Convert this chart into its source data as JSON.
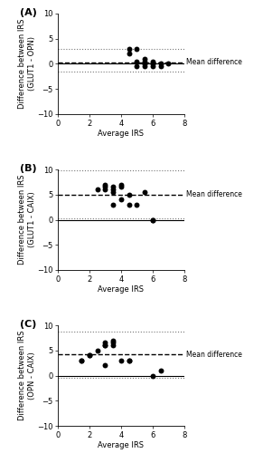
{
  "panel_A": {
    "label": "(A)",
    "ylabel": "Difference between IRS\n(GLUT1 - OPN)",
    "xlabel": "Average IRS",
    "mean_diff": 0.3,
    "upper_ci": 3.0,
    "lower_ci": -1.5,
    "zero_line": 0.0,
    "xlim": [
      0,
      8
    ],
    "ylim": [
      -10,
      10
    ],
    "xticks": [
      0,
      2,
      4,
      6,
      8
    ],
    "yticks": [
      -10,
      -5,
      0,
      5,
      10
    ],
    "points_x": [
      4.5,
      4.5,
      5.0,
      5.0,
      5.0,
      5.5,
      5.5,
      5.5,
      5.5,
      5.5,
      6.0,
      6.0,
      6.0,
      6.0,
      6.5,
      6.5,
      7.0
    ],
    "points_y": [
      2.0,
      3.0,
      3.0,
      0.5,
      -0.5,
      0.5,
      0.0,
      0.0,
      -0.5,
      1.0,
      0.5,
      0.0,
      -0.5,
      0.0,
      -0.5,
      0.0,
      0.0
    ],
    "mean_label": "Mean difference"
  },
  "panel_B": {
    "label": "(B)",
    "ylabel": "Difference between IRS\n(GLUT1 - CAIX)",
    "xlabel": "Average IRS",
    "mean_diff": 5.0,
    "upper_ci": 9.8,
    "lower_ci": 0.2,
    "zero_line": 0.0,
    "xlim": [
      0,
      8
    ],
    "ylim": [
      -10,
      10
    ],
    "xticks": [
      0,
      2,
      4,
      6,
      8
    ],
    "yticks": [
      -10,
      -5,
      0,
      5,
      10
    ],
    "points_x": [
      2.5,
      3.0,
      3.0,
      3.0,
      3.5,
      3.5,
      3.5,
      3.5,
      4.0,
      4.0,
      4.0,
      4.5,
      4.5,
      5.0,
      5.5,
      6.0,
      6.0
    ],
    "points_y": [
      6.0,
      6.0,
      7.0,
      6.5,
      3.0,
      5.5,
      6.0,
      6.5,
      4.0,
      7.0,
      6.5,
      3.0,
      5.0,
      3.0,
      5.5,
      0.0,
      0.0
    ],
    "mean_label": "Mean difference"
  },
  "panel_C": {
    "label": "(C)",
    "ylabel": "Difference between IRS\n(OPN - CAIX)",
    "xlabel": "Average IRS",
    "mean_diff": 4.2,
    "upper_ci": 8.8,
    "lower_ci": -0.5,
    "zero_line": 0.0,
    "xlim": [
      0,
      8
    ],
    "ylim": [
      -10,
      10
    ],
    "xticks": [
      0,
      2,
      4,
      6,
      8
    ],
    "yticks": [
      -10,
      -5,
      0,
      5,
      10
    ],
    "points_x": [
      1.5,
      1.5,
      2.0,
      2.0,
      2.5,
      3.0,
      3.0,
      3.0,
      3.0,
      3.5,
      3.5,
      3.5,
      4.0,
      4.5,
      4.5,
      6.0,
      6.5
    ],
    "points_y": [
      3.0,
      3.0,
      4.0,
      4.0,
      5.0,
      2.0,
      6.0,
      6.0,
      6.5,
      7.0,
      6.0,
      6.5,
      3.0,
      3.0,
      3.0,
      0.0,
      1.0
    ],
    "mean_label": "Mean difference"
  },
  "point_color": "#000000",
  "point_size": 18,
  "mean_line_color": "#000000",
  "ci_line_color": "#777777",
  "zero_line_color": "#000000",
  "bg_color": "#ffffff",
  "panel_label_fontsize": 8,
  "label_fontsize": 6.0,
  "tick_fontsize": 6,
  "annot_fontsize": 5.5
}
